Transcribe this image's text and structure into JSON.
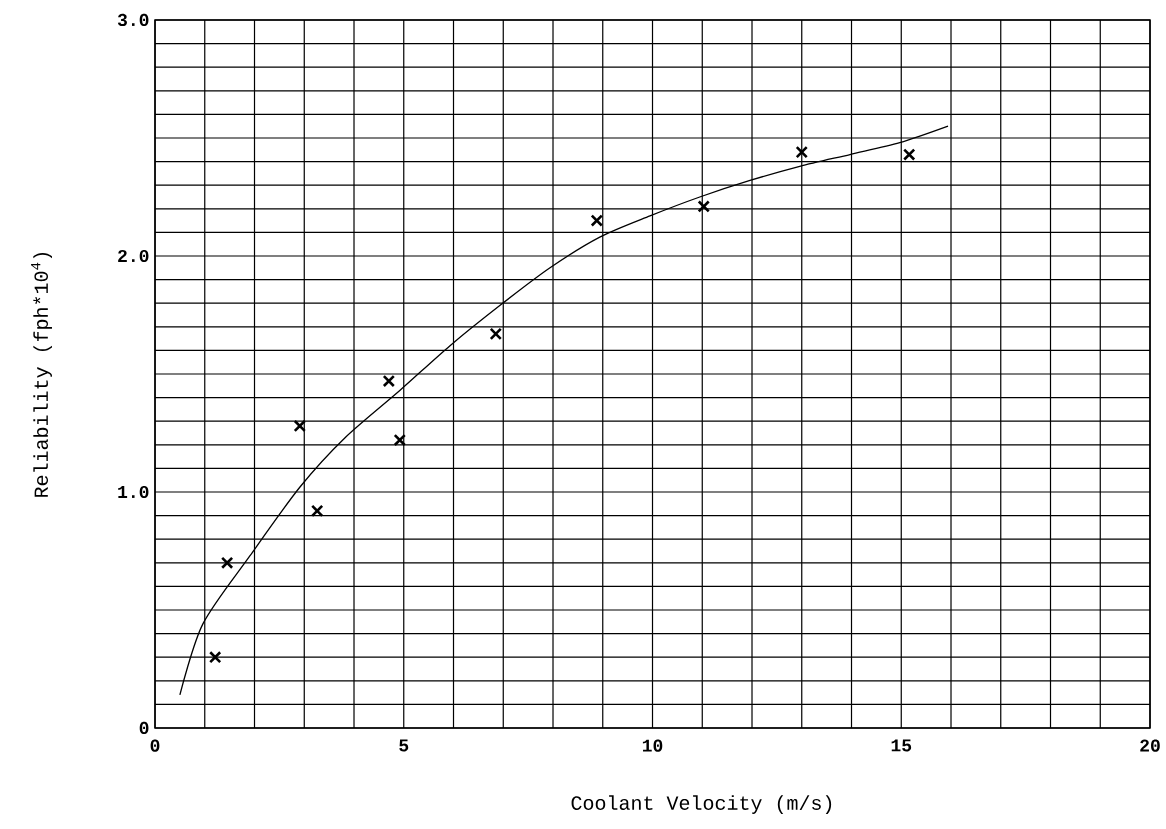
{
  "chart_data": {
    "type": "scatter",
    "xlabel": "Coolant Velocity (m/s)",
    "ylabel": "Reliability (fph*10$^{4}$)",
    "xlim": [
      0,
      20
    ],
    "ylim": [
      0,
      3
    ],
    "xticks": [
      0,
      {
        "value": 1,
        "label": null
      },
      {
        "value": 2,
        "label": null
      },
      {
        "value": 3,
        "label": null
      },
      {
        "value": 4,
        "label": null
      },
      5,
      {
        "value": 6,
        "label": null
      },
      {
        "value": 7,
        "label": null
      },
      {
        "value": 8,
        "label": null
      },
      {
        "value": 9,
        "label": null
      },
      10,
      {
        "value": 11,
        "label": null
      },
      {
        "value": 12,
        "label": null
      },
      {
        "value": 13,
        "label": null
      },
      {
        "value": 14,
        "label": null
      },
      15,
      {
        "value": 16,
        "label": null
      },
      {
        "value": 17,
        "label": null
      },
      {
        "value": 18,
        "label": null
      },
      {
        "value": 19,
        "label": null
      },
      20
    ],
    "yticks": [
      0,
      {
        "value": 0.1,
        "label": null
      },
      {
        "value": 0.2,
        "label": null
      },
      {
        "value": 0.3,
        "label": null
      },
      {
        "value": 0.4,
        "label": null
      },
      {
        "value": 0.5,
        "label": null
      },
      {
        "value": 0.6,
        "label": null
      },
      {
        "value": 0.7,
        "label": null
      },
      {
        "value": 0.8,
        "label": null
      },
      {
        "value": 0.9,
        "label": null
      },
      {
        "value": 1,
        "label": "1.0"
      },
      {
        "value": 1.1,
        "label": null
      },
      {
        "value": 1.2,
        "label": null
      },
      {
        "value": 1.3,
        "label": null
      },
      {
        "value": 1.4,
        "label": null
      },
      {
        "value": 1.5,
        "label": null
      },
      {
        "value": 1.6,
        "label": null
      },
      {
        "value": 1.7,
        "label": null
      },
      {
        "value": 1.8,
        "label": null
      },
      {
        "value": 1.9,
        "label": null
      },
      {
        "value": 2,
        "label": "2.0"
      },
      {
        "value": 2.1,
        "label": null
      },
      {
        "value": 2.2,
        "label": null
      },
      {
        "value": 2.3,
        "label": null
      },
      {
        "value": 2.4,
        "label": null
      },
      {
        "value": 2.5,
        "label": null
      },
      {
        "value": 2.6,
        "label": null
      },
      {
        "value": 2.7,
        "label": null
      },
      {
        "value": 2.8,
        "label": null
      },
      {
        "value": 2.9,
        "label": null
      },
      {
        "value": 3,
        "label": "3.0"
      }
    ],
    "grid": true,
    "series": [
      {
        "color": "#000000",
        "marker": "cross",
        "x": [
          1.21,
          1.45,
          2.91,
          3.26,
          4.7,
          4.92,
          6.85,
          8.88,
          11.03,
          13.0,
          15.16
        ],
        "values": [
          0.3,
          0.7,
          1.28,
          0.92,
          1.47,
          1.22,
          1.67,
          2.15,
          2.21,
          2.44,
          2.43
        ]
      },
      {
        "type": "line",
        "color": "#000000",
        "marker": "none",
        "line_style": "solid",
        "x": [
          0.5,
          0.96,
          1.91,
          2.91,
          3.82,
          4.92,
          5.93,
          6.93,
          7.94,
          8.94,
          9.95,
          10.95,
          11.96,
          12.96,
          13.97,
          14.97,
          15.94
        ],
        "values": [
          0.14,
          0.44,
          0.73,
          1.02,
          1.23,
          1.43,
          1.62,
          1.79,
          1.95,
          2.08,
          2.17,
          2.25,
          2.32,
          2.38,
          2.43,
          2.48,
          2.55
        ]
      }
    ]
  }
}
